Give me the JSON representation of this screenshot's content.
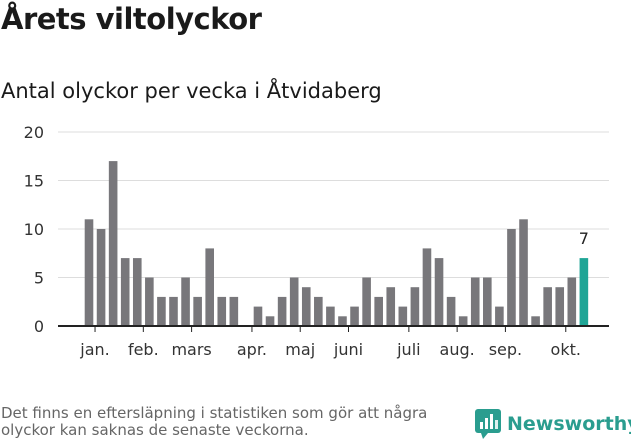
{
  "header": {
    "title": "Årets viltolyckor",
    "subtitle": "Antal olyckor per vecka i Åtvidaberg"
  },
  "footer": {
    "note": "Det finns en eftersläpning i statistiken som gör att några olyckor kan saknas de senaste veckorna.",
    "brand": "Newsworthy"
  },
  "colors": {
    "bar": "#78777b",
    "highlight": "#1fa596",
    "grid": "#dddddd",
    "axis": "#222222",
    "brand": "#2a9d8f"
  },
  "chart_data": {
    "type": "bar",
    "title": "Antal olyckor per vecka i Åtvidaberg",
    "ylim": [
      0,
      20
    ],
    "yticks": [
      0,
      5,
      10,
      15,
      20
    ],
    "grid": true,
    "values": [
      11,
      10,
      17,
      7,
      7,
      5,
      3,
      3,
      5,
      3,
      8,
      3,
      3,
      0,
      2,
      1,
      3,
      5,
      4,
      3,
      2,
      1,
      2,
      5,
      3,
      4,
      2,
      4,
      8,
      7,
      3,
      1,
      5,
      5,
      2,
      10,
      11,
      1,
      4,
      4,
      5,
      7
    ],
    "highlight_index": 41,
    "highlight_label": "7",
    "month_labels": [
      {
        "label": "jan.",
        "index": 0.5
      },
      {
        "label": "feb.",
        "index": 4.5
      },
      {
        "label": "mars",
        "index": 8.5
      },
      {
        "label": "apr.",
        "index": 13.5
      },
      {
        "label": "maj",
        "index": 17.5
      },
      {
        "label": "juni",
        "index": 21.5
      },
      {
        "label": "juli",
        "index": 26.5
      },
      {
        "label": "aug.",
        "index": 30.5
      },
      {
        "label": "sep.",
        "index": 34.5
      },
      {
        "label": "okt.",
        "index": 39.5
      }
    ]
  }
}
